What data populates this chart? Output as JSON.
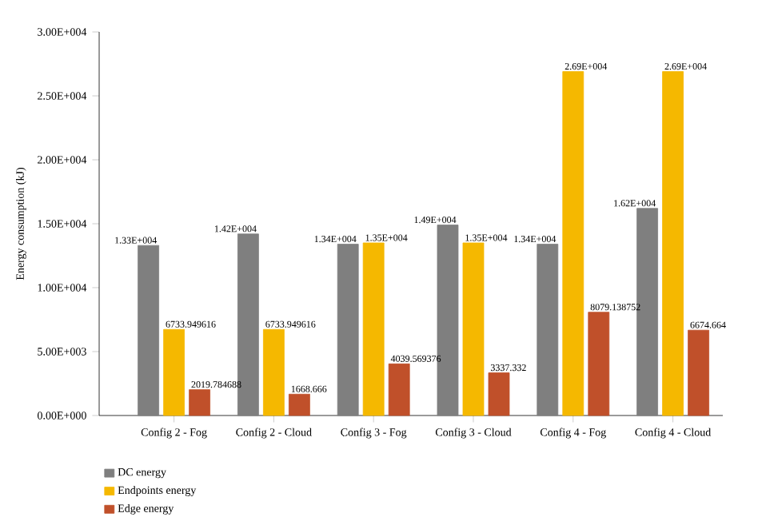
{
  "chart_data": {
    "type": "bar",
    "ylabel": "Energy consumption (kJ)",
    "categories": [
      "Config 2 - Fog",
      "Config 2 - Cloud",
      "Config 3 - Fog",
      "Config 3 - Cloud",
      "Config 4 - Fog",
      "Config 4 - Cloud"
    ],
    "series": [
      {
        "name": "DC energy",
        "color": "#7f7f7f",
        "values": [
          13300,
          14200,
          13400,
          14900,
          13400,
          16200
        ],
        "value_labels": [
          "1.33E+004",
          "1.42E+004",
          "1.34E+004",
          "1.49E+004",
          "1.34E+004",
          "1.62E+004"
        ]
      },
      {
        "name": "Endpoints energy",
        "color": "#f5b800",
        "values": [
          6733.949616,
          6733.949616,
          13500,
          13500,
          26900,
          26900
        ],
        "value_labels": [
          "6733.949616",
          "6733.949616",
          "1.35E+004",
          "1.35E+004",
          "2.69E+004",
          "2.69E+004"
        ]
      },
      {
        "name": "Edge energy",
        "color": "#c0502a",
        "values": [
          2019.784688,
          1668.666,
          4039.569376,
          3337.332,
          8079.138752,
          6674.664
        ],
        "value_labels": [
          "2019.784688",
          "1668.666",
          "4039.569376",
          "3337.332",
          "8079.138752",
          "6674.664"
        ]
      }
    ],
    "ylim": [
      0,
      30000
    ],
    "yticks": [
      {
        "value": 0,
        "label": "0.00E+000"
      },
      {
        "value": 5000,
        "label": "5.00E+003"
      },
      {
        "value": 10000,
        "label": "1.00E+004"
      },
      {
        "value": 15000,
        "label": "1.50E+004"
      },
      {
        "value": 20000,
        "label": "2.00E+004"
      },
      {
        "value": 25000,
        "label": "2.50E+004"
      },
      {
        "value": 30000,
        "label": "3.00E+004"
      }
    ],
    "legend": "bottom left",
    "grid": false
  }
}
